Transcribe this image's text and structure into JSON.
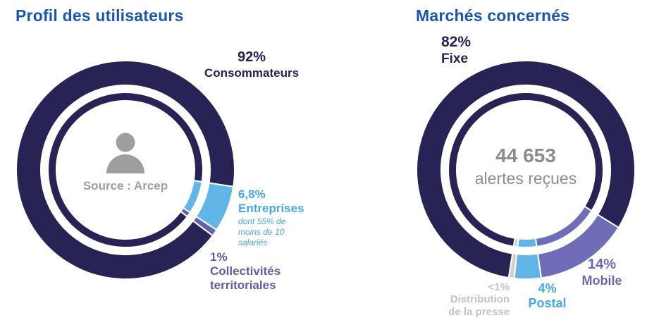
{
  "page": {
    "background": "#FFFFFF"
  },
  "palette": {
    "title_blue": "#1C57A8",
    "navy": "#282355",
    "light_blue": "#62B5E7",
    "purple": "#6F6CB8",
    "sliver_gray": "#D0D0D0",
    "center_text_gray": "#8C8C8C",
    "source_text_gray": "#9E9E9E",
    "person_icon_gray": "#9E9E9E"
  },
  "chart_data": [
    {
      "type": "pie",
      "variant": "double-ring-donut",
      "title": "Profil des utilisateurs",
      "legend_position": "around",
      "start_angle": 127,
      "center": {
        "icon": "person-icon",
        "label": "Source : Arcep"
      },
      "segments": [
        {
          "label": "Consommateurs",
          "pct_label": "92%",
          "value": 92,
          "color": "#282355",
          "text_color": "#262253"
        },
        {
          "label": "Entreprises",
          "pct_label": "6,8%",
          "value": 6.8,
          "color": "#62B5E7",
          "text_color": "#47A7DF",
          "note": "dont 55% de moins de 10 salariés"
        },
        {
          "label": "Collectivités territoriales",
          "pct_label": "1%",
          "value": 1,
          "color": "#6562AE",
          "text_color": "#5E5BA7"
        }
      ]
    },
    {
      "type": "pie",
      "variant": "double-ring-donut",
      "title": "Marchés concernés",
      "legend_position": "around",
      "start_angle": 189,
      "center": {
        "value": "44 653",
        "label": "alertes reçues"
      },
      "segments": [
        {
          "label": "Fixe",
          "pct_label": "82%",
          "value": 82,
          "color": "#282355",
          "text_color": "#262253"
        },
        {
          "label": "Mobile",
          "pct_label": "14%",
          "value": 14,
          "color": "#6F6CB8",
          "text_color": "#6A67AE"
        },
        {
          "label": "Postal",
          "pct_label": "4%",
          "value": 4,
          "color": "#62B5E7",
          "text_color": "#47A7DF"
        },
        {
          "label": "Distribution de la presse",
          "pct_label": "<1%",
          "value": 0.8,
          "color": "#D0D0D0",
          "text_color": "#C2C2C2"
        }
      ]
    }
  ]
}
